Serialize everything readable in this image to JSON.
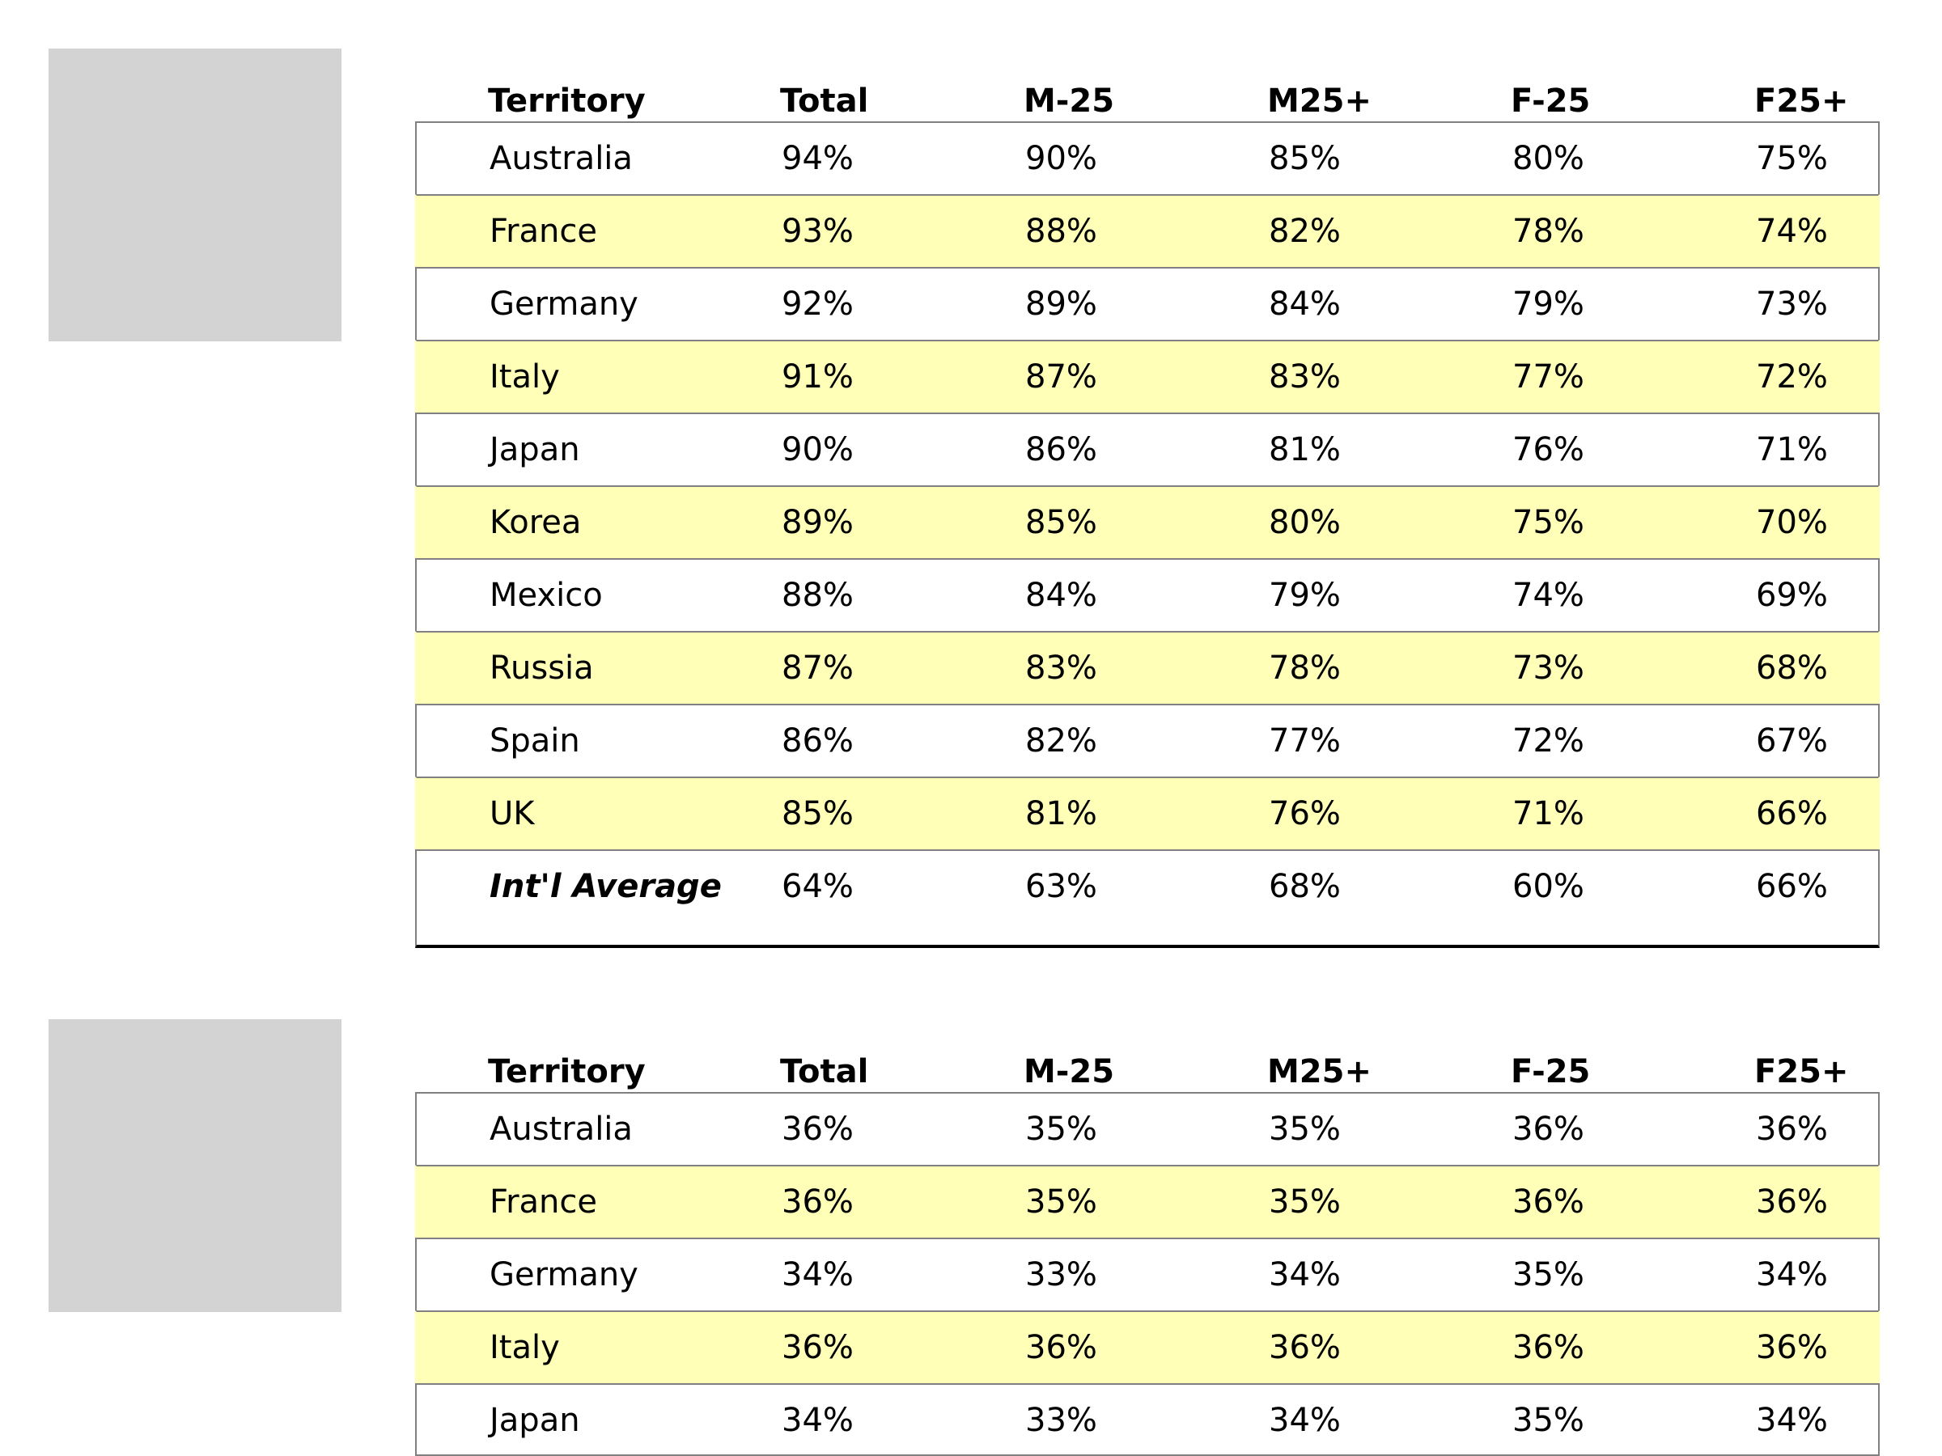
{
  "tables": [
    {
      "columns": [
        "Territory",
        "Total",
        "M-25",
        "M25+",
        "F-25",
        "F25+"
      ],
      "rows": [
        [
          "Australia",
          "94%",
          "90%",
          "85%",
          "80%",
          "75%"
        ],
        [
          "France",
          "93%",
          "88%",
          "82%",
          "78%",
          "74%"
        ],
        [
          "Germany",
          "92%",
          "89%",
          "84%",
          "79%",
          "73%"
        ],
        [
          "Italy",
          "91%",
          "87%",
          "83%",
          "77%",
          "72%"
        ],
        [
          "Japan",
          "90%",
          "86%",
          "81%",
          "76%",
          "71%"
        ],
        [
          "Korea",
          "89%",
          "85%",
          "80%",
          "75%",
          "70%"
        ],
        [
          "Mexico",
          "88%",
          "84%",
          "79%",
          "74%",
          "69%"
        ],
        [
          "Russia",
          "87%",
          "83%",
          "78%",
          "73%",
          "68%"
        ],
        [
          "Spain",
          "86%",
          "82%",
          "77%",
          "72%",
          "67%"
        ],
        [
          "UK",
          "85%",
          "81%",
          "76%",
          "71%",
          "66%"
        ]
      ],
      "average": [
        "Int'l Average",
        "64%",
        "63%",
        "68%",
        "60%",
        "66%"
      ]
    },
    {
      "columns": [
        "Territory",
        "Total",
        "M-25",
        "M25+",
        "F-25",
        "F25+"
      ],
      "rows": [
        [
          "Australia",
          "36%",
          "35%",
          "35%",
          "36%",
          "36%"
        ],
        [
          "France",
          "36%",
          "35%",
          "35%",
          "36%",
          "36%"
        ],
        [
          "Germany",
          "34%",
          "33%",
          "34%",
          "35%",
          "34%"
        ],
        [
          "Italy",
          "36%",
          "36%",
          "36%",
          "36%",
          "36%"
        ],
        [
          "Japan",
          "34%",
          "33%",
          "34%",
          "35%",
          "34%"
        ]
      ]
    }
  ],
  "colors": {
    "stripe": "#ffffb8",
    "placeholder": "#d3d3d3",
    "border": "#808080"
  }
}
